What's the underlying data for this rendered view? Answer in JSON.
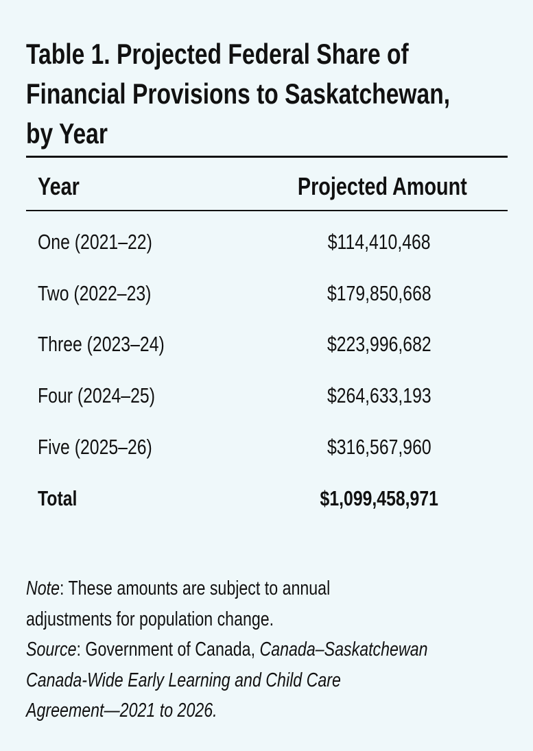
{
  "title_lines": [
    "Table 1. Projected Federal Share of",
    "Financial Provisions to Saskatchewan,",
    "by Year"
  ],
  "table": {
    "headers": [
      "Year",
      "Projected Amount"
    ],
    "rows": [
      [
        "One (2021–22)",
        "$114,410,468"
      ],
      [
        "Two (2022–23)",
        "$179,850,668"
      ],
      [
        "Three (2023–24)",
        "$223,996,682"
      ],
      [
        "Four (2024–25)",
        "$264,633,193"
      ],
      [
        "Five (2025–26)",
        "$316,567,960"
      ]
    ],
    "total": [
      "Total",
      "$1,099,458,971"
    ]
  },
  "notes": {
    "note_label": "Note",
    "note_line1": ": These amounts are subject to annual",
    "note_line2": "adjustments for population change.",
    "source_label": "Source",
    "source_line1_plain": ": Government of Canada, ",
    "source_line1_italic": "Canada–Saskatchewan",
    "source_line2": "Canada-Wide Early Learning and Child Care",
    "source_line3": "Agreement—2021 to 2026."
  },
  "colors": {
    "background": "#eff8fa",
    "text": "#111111"
  }
}
